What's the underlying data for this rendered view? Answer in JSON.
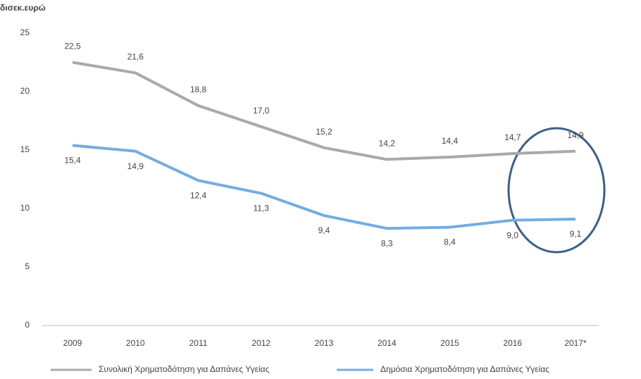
{
  "chart_data": {
    "type": "line",
    "y_label": "δισεκ.ευρώ",
    "categories": [
      "2009",
      "2010",
      "2011",
      "2012",
      "2013",
      "2014",
      "2015",
      "2016",
      "2017*"
    ],
    "series": [
      {
        "name": "Συνολική Χρηματοδότηση για Δαπάνες Υγείας",
        "color": "#a9a9a9",
        "values": [
          22.5,
          21.6,
          18.8,
          17.0,
          15.2,
          14.2,
          14.4,
          14.7,
          14.9
        ],
        "value_labels": [
          "22,5",
          "21,6",
          "18,8",
          "17,0",
          "15,2",
          "14,2",
          "14,4",
          "14,7",
          "14,9"
        ]
      },
      {
        "name": "Δημόσια Χρηματοδότηση για Δαπάνες Υγείας",
        "color": "#74ade0",
        "values": [
          15.4,
          14.9,
          12.4,
          11.3,
          9.4,
          8.3,
          8.4,
          9.0,
          9.1
        ],
        "value_labels": [
          "15,4",
          "14,9",
          "12,4",
          "11,3",
          "9,4",
          "8,3",
          "8,4",
          "9,0",
          "9,1"
        ]
      }
    ],
    "ylim": [
      0,
      25
    ],
    "yticks": [
      0,
      5,
      10,
      15,
      20,
      25
    ]
  }
}
